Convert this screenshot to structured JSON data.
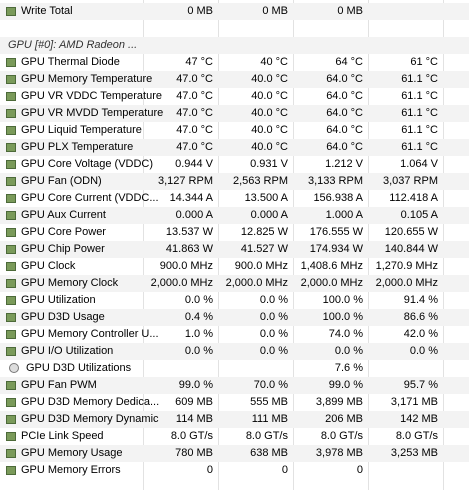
{
  "rows_top": [
    {
      "label": "Write Total",
      "values": [
        "0 MB",
        "0 MB",
        "0 MB",
        null
      ]
    }
  ],
  "group": {
    "label": "GPU [#0]: AMD Radeon ..."
  },
  "rows": [
    {
      "label": "GPU Thermal Diode",
      "values": [
        "47 °C",
        "40 °C",
        "64 °C",
        "61 °C"
      ]
    },
    {
      "label": "GPU Memory Temperature",
      "values": [
        "47.0 °C",
        "40.0 °C",
        "64.0 °C",
        "61.1 °C"
      ]
    },
    {
      "label": "GPU VR VDDC Temperature",
      "values": [
        "47.0 °C",
        "40.0 °C",
        "64.0 °C",
        "61.1 °C"
      ]
    },
    {
      "label": "GPU VR MVDD Temperature",
      "values": [
        "47.0 °C",
        "40.0 °C",
        "64.0 °C",
        "61.1 °C"
      ]
    },
    {
      "label": "GPU Liquid Temperature",
      "values": [
        "47.0 °C",
        "40.0 °C",
        "64.0 °C",
        "61.1 °C"
      ]
    },
    {
      "label": "GPU PLX Temperature",
      "values": [
        "47.0 °C",
        "40.0 °C",
        "64.0 °C",
        "61.1 °C"
      ]
    },
    {
      "label": "GPU Core Voltage (VDDC)",
      "values": [
        "0.944 V",
        "0.931 V",
        "1.212 V",
        "1.064 V"
      ]
    },
    {
      "label": "GPU Fan (ODN)",
      "values": [
        "3,127 RPM",
        "2,563 RPM",
        "3,133 RPM",
        "3,037 RPM"
      ]
    },
    {
      "label": "GPU Core Current (VDDC...",
      "values": [
        "14.344 A",
        "13.500 A",
        "156.938 A",
        "112.418 A"
      ]
    },
    {
      "label": "GPU Aux Current",
      "values": [
        "0.000 A",
        "0.000 A",
        "1.000 A",
        "0.105 A"
      ]
    },
    {
      "label": "GPU Core Power",
      "values": [
        "13.537 W",
        "12.825 W",
        "176.555 W",
        "120.655 W"
      ]
    },
    {
      "label": "GPU Chip Power",
      "values": [
        "41.863 W",
        "41.527 W",
        "174.934 W",
        "140.844 W"
      ]
    },
    {
      "label": "GPU Clock",
      "values": [
        "900.0 MHz",
        "900.0 MHz",
        "1,408.6 MHz",
        "1,270.9 MHz"
      ]
    },
    {
      "label": "GPU Memory Clock",
      "values": [
        "2,000.0 MHz",
        "2,000.0 MHz",
        "2,000.0 MHz",
        "2,000.0 MHz"
      ]
    },
    {
      "label": "GPU Utilization",
      "values": [
        "0.0 %",
        "0.0 %",
        "100.0 %",
        "91.4 %"
      ]
    },
    {
      "label": "GPU D3D Usage",
      "values": [
        "0.4 %",
        "0.0 %",
        "100.0 %",
        "86.6 %"
      ]
    },
    {
      "label": "GPU Memory Controller U...",
      "values": [
        "1.0 %",
        "0.0 %",
        "74.0 %",
        "42.0 %"
      ]
    },
    {
      "label": "GPU I/O Utilization",
      "values": [
        "0.0 %",
        "0.0 %",
        "0.0 %",
        "0.0 %"
      ]
    },
    {
      "label": "GPU D3D Utilizations",
      "values": [
        null,
        null,
        "7.6 %",
        null
      ],
      "sub": true
    },
    {
      "label": "GPU Fan PWM",
      "values": [
        "99.0 %",
        "70.0 %",
        "99.0 %",
        "95.7 %"
      ]
    },
    {
      "label": "GPU D3D Memory Dedica...",
      "values": [
        "609 MB",
        "555 MB",
        "3,899 MB",
        "3,171 MB"
      ]
    },
    {
      "label": "GPU D3D Memory Dynamic",
      "values": [
        "114 MB",
        "111 MB",
        "206 MB",
        "142 MB"
      ]
    },
    {
      "label": "PCIe Link Speed",
      "values": [
        "8.0 GT/s",
        "8.0 GT/s",
        "8.0 GT/s",
        "8.0 GT/s"
      ]
    },
    {
      "label": "GPU Memory Usage",
      "values": [
        "780 MB",
        "638 MB",
        "3,978 MB",
        "3,253 MB"
      ]
    },
    {
      "label": "GPU Memory Errors",
      "values": [
        "0",
        "0",
        "0",
        null
      ]
    }
  ]
}
